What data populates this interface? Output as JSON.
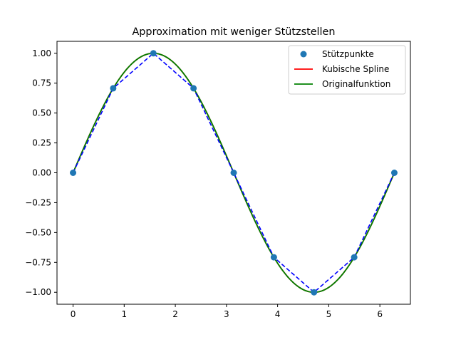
{
  "chart_data": {
    "type": "line",
    "title": "Approximation mit weniger Stützstellen",
    "xlabel": "",
    "ylabel": "",
    "xlim": [
      -0.314,
      6.597
    ],
    "ylim": [
      -1.1,
      1.1
    ],
    "xticks": [
      0,
      1,
      2,
      3,
      4,
      5,
      6
    ],
    "xtick_labels": [
      "0",
      "1",
      "2",
      "3",
      "4",
      "5",
      "6"
    ],
    "yticks": [
      -1.0,
      -0.75,
      -0.5,
      -0.25,
      0.0,
      0.25,
      0.5,
      0.75,
      1.0
    ],
    "ytick_labels": [
      "−1.00",
      "−0.75",
      "−0.50",
      "−0.25",
      "0.00",
      "0.25",
      "0.50",
      "0.75",
      "1.00"
    ],
    "grid": false,
    "legend_position": "top-right",
    "colors": {
      "points": "#1f77b4",
      "linear": "#0000ff",
      "spline": "#ff0000",
      "original": "#008000"
    },
    "series": [
      {
        "name": "Stützpunkte",
        "style": "markers",
        "x": [
          0,
          0.785,
          1.571,
          2.356,
          3.142,
          3.927,
          4.712,
          5.498,
          6.283
        ],
        "y": [
          0,
          0.707,
          1.0,
          0.707,
          0.0,
          -0.707,
          -1.0,
          -0.707,
          0.0
        ]
      },
      {
        "style": "dashed-line",
        "x": [
          0,
          0.785,
          1.571,
          2.356,
          3.142,
          3.927,
          4.712,
          5.498,
          6.283
        ],
        "y": [
          0,
          0.707,
          1.0,
          0.707,
          0.0,
          -0.707,
          -1.0,
          -0.707,
          0.0
        ]
      },
      {
        "name": "Kubische Spline",
        "style": "line",
        "function": "sin",
        "x_range": [
          0,
          6.283
        ]
      },
      {
        "name": "Originalfunktion",
        "style": "line",
        "function": "sin",
        "x_range": [
          0,
          6.283
        ]
      }
    ],
    "legend": [
      {
        "label": "Stützpunkte",
        "kind": "marker",
        "color_key": "points"
      },
      {
        "label": "Kubische Spline",
        "kind": "line",
        "color_key": "spline"
      },
      {
        "label": "Originalfunktion",
        "kind": "line",
        "color_key": "original"
      }
    ]
  }
}
